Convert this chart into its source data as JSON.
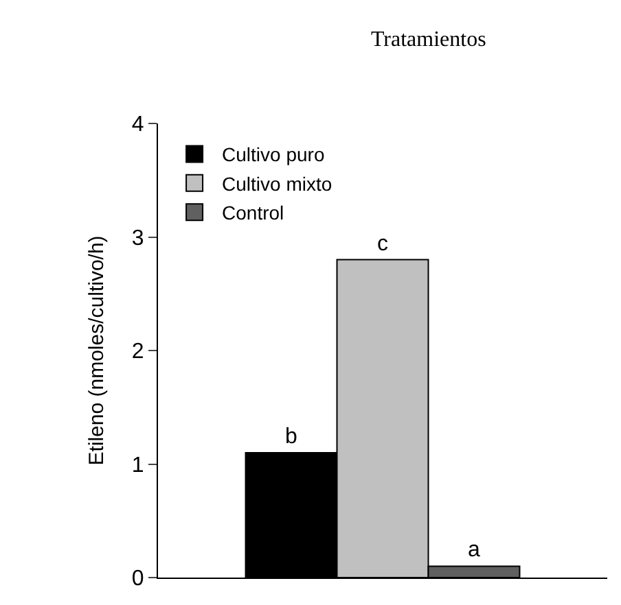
{
  "chart_data": {
    "type": "bar",
    "title": "Tratamientos",
    "ylabel": "Etileno (nmoles/cultivo/h)",
    "categories": [
      null
    ],
    "series": [
      {
        "name": "Cultivo puro",
        "color": "#000000",
        "values": [
          1.1
        ],
        "value_labels": [
          "b"
        ]
      },
      {
        "name": "Cultivo mixto",
        "color": "#c0c0c0",
        "values": [
          2.8
        ],
        "value_labels": [
          "c"
        ]
      },
      {
        "name": "Control",
        "color": "#606060",
        "values": [
          0.1
        ],
        "value_labels": [
          "a"
        ]
      }
    ],
    "ylim": [
      0,
      4
    ],
    "yticks": [
      0,
      1,
      2,
      3,
      4
    ],
    "grid": false,
    "legend": "top left"
  }
}
